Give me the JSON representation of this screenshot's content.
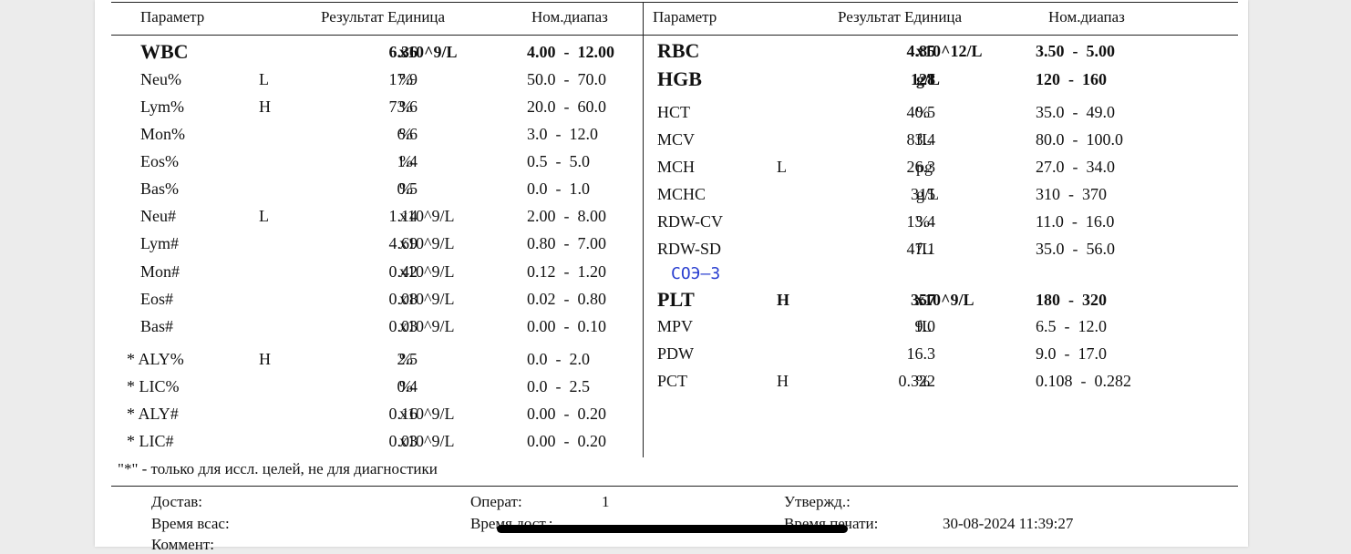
{
  "headers": {
    "left": {
      "param": "Параметр",
      "result_unit": "Результат Единица",
      "range": "Ном.диапаз"
    },
    "right": {
      "param": "Параметр",
      "result_unit": "Результат Единица",
      "range": "Ном.диапаз"
    }
  },
  "left_rows": [
    {
      "param": "WBC",
      "flag": "",
      "result": "6.36",
      "unit": "x10^9/L",
      "range": "4.00  -  12.00",
      "bold": true
    },
    {
      "param": "Neu%",
      "flag": "L",
      "result": "17.9",
      "unit": "%",
      "range": "50.0  -  70.0",
      "bold": false
    },
    {
      "param": "Lym%",
      "flag": "H",
      "result": "73.6",
      "unit": "%",
      "range": "20.0  -  60.0",
      "bold": false
    },
    {
      "param": "Mon%",
      "flag": "",
      "result": "6.6",
      "unit": "%",
      "range": "3.0  -  12.0",
      "bold": false
    },
    {
      "param": "Eos%",
      "flag": "",
      "result": "1.4",
      "unit": "%",
      "range": "0.5  -  5.0",
      "bold": false
    },
    {
      "param": "Bas%",
      "flag": "",
      "result": "0.5",
      "unit": "%",
      "range": "0.0  -  1.0",
      "bold": false
    },
    {
      "param": "Neu#",
      "flag": "L",
      "result": "1.14",
      "unit": "x10^9/L",
      "range": "2.00  -  8.00",
      "bold": false
    },
    {
      "param": "Lym#",
      "flag": "",
      "result": "4.69",
      "unit": "x10^9/L",
      "range": "0.80  -  7.00",
      "bold": false
    },
    {
      "param": "Mon#",
      "flag": "",
      "result": "0.42",
      "unit": "x10^9/L",
      "range": "0.12  -  1.20",
      "bold": false
    },
    {
      "param": "Eos#",
      "flag": "",
      "result": "0.08",
      "unit": "x10^9/L",
      "range": "0.02  -  0.80",
      "bold": false
    },
    {
      "param": "Bas#",
      "flag": "",
      "result": "0.03",
      "unit": "x10^9/L",
      "range": "0.00  -  0.10",
      "bold": false
    },
    {
      "param": "* ALY%",
      "flag": "H",
      "result": "2.5",
      "unit": "%",
      "range": "0.0  -  2.0",
      "bold": false
    },
    {
      "param": "* LIC%",
      "flag": "",
      "result": "0.4",
      "unit": "%",
      "range": "0.0  -  2.5",
      "bold": false
    },
    {
      "param": "* ALY#",
      "flag": "",
      "result": "0.16",
      "unit": "x10^9/L",
      "range": "0.00  -  0.20",
      "bold": false
    },
    {
      "param": "* LIC#",
      "flag": "",
      "result": "0.03",
      "unit": "x10^9/L",
      "range": "0.00  -  0.20",
      "bold": false
    }
  ],
  "right_rows": [
    {
      "param": "RBC",
      "flag": "",
      "result": "4.85",
      "unit": "x10^12/L",
      "range": "3.50  -  5.00",
      "bold": true
    },
    {
      "param": "HGB",
      "flag": "",
      "result": "128",
      "unit": "g/L",
      "range": "120  -  160",
      "bold": true
    },
    {
      "param": "HCT",
      "flag": "",
      "result": "40.5",
      "unit": "%",
      "range": "35.0  -  49.0",
      "bold": false
    },
    {
      "param": "MCV",
      "flag": "",
      "result": "83.4",
      "unit": "fL",
      "range": "80.0  -  100.0",
      "bold": false
    },
    {
      "param": "MCH",
      "flag": "L",
      "result": "26.3",
      "unit": "pg",
      "range": "27.0  -  34.0",
      "bold": false
    },
    {
      "param": "MCHC",
      "flag": "",
      "result": "315",
      "unit": "g/L",
      "range": "310  -  370",
      "bold": false
    },
    {
      "param": "RDW-CV",
      "flag": "",
      "result": "13.4",
      "unit": "%",
      "range": "11.0  -  16.0",
      "bold": false
    },
    {
      "param": "RDW-SD",
      "flag": "",
      "result": "47.1",
      "unit": "fL",
      "range": "35.0  -  56.0",
      "bold": false
    },
    {
      "param": "PLT",
      "flag": "H",
      "result": "357",
      "unit": "x10^9/L",
      "range": "180  -  320",
      "bold": true
    },
    {
      "param": "MPV",
      "flag": "",
      "result": "9.0",
      "unit": "fL",
      "range": "6.5  -  12.0",
      "bold": false
    },
    {
      "param": "PDW",
      "flag": "",
      "result": "16.3",
      "unit": "",
      "range": "9.0  -  17.0",
      "bold": false
    },
    {
      "param": "PCT",
      "flag": "H",
      "result": "0.322",
      "unit": "%",
      "range": "0.108  -  0.282",
      "bold": false
    }
  ],
  "handwritten_note": "СОЭ–3",
  "footnote": "\"*\" - только для иссл. целей, не для диагностики",
  "footer": {
    "delivered_label": "Достав:",
    "operator_label": "Операт:",
    "operator_value": "1",
    "approved_label": "Утвержд.:",
    "draw_time_label": "Время всас:",
    "delivery_time_label": "Время дост.:",
    "print_time_label": "Время печати:",
    "print_time_value": "30-08-2024 11:39:27",
    "comment_label": "Коммент:"
  }
}
